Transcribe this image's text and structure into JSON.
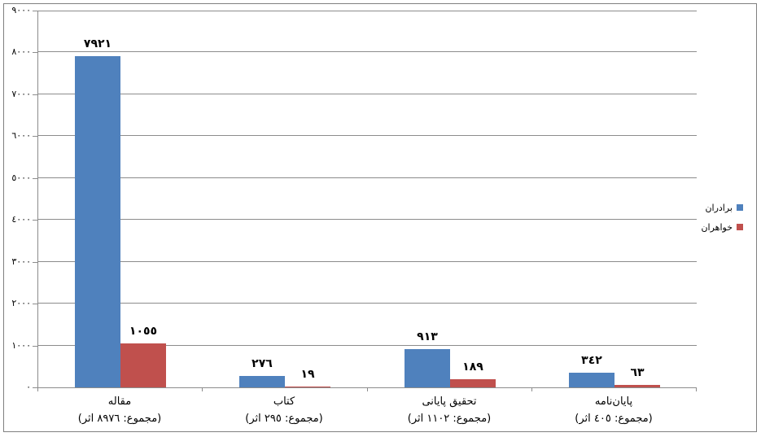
{
  "chart_data": {
    "type": "bar",
    "title": "",
    "xlabel": "",
    "ylabel": "",
    "grid": true,
    "background": "#FFFFFF",
    "colors": {
      "gridline": "#8C8C8C",
      "axis": "#8C8C8C",
      "border": "#808080",
      "label": "#000000",
      "series_blue": "#4F81BD",
      "series_red": "#C0504D"
    },
    "categories": [
      {
        "label": "مقاله",
        "sublabel": "(مجموع:  ٨٩٧٦ اثر)",
        "total": 8976
      },
      {
        "label": "کتاب",
        "sublabel": "(مجموع:  ٢٩٥ اثر)",
        "total": 295
      },
      {
        "label": "تحقیق پایانی",
        "sublabel": "(مجموع:  ١١٠٢ اثر)",
        "total": 1102
      },
      {
        "label": "پایان‌نامه",
        "sublabel": "(مجموع:  ٤٠٥ اثر)",
        "total": 405
      }
    ],
    "series": [
      {
        "name": "برادران",
        "color": "#4F81BD",
        "values": [
          7921,
          276,
          913,
          342
        ],
        "value_labels": [
          "٧٩٢١",
          "٢٧٦",
          "٩١٣",
          "٣٤٢"
        ]
      },
      {
        "name": "خواهران",
        "color": "#C0504D",
        "values": [
          1055,
          19,
          189,
          63
        ],
        "value_labels": [
          "١٠٥٥",
          "١٩",
          "١٨٩",
          "٦٣"
        ]
      }
    ],
    "y_axis": {
      "min": 0,
      "max": 9000,
      "step": 1000,
      "ticks": [
        {
          "value": 0,
          "label": "٠"
        },
        {
          "value": 1000,
          "label": "١٠٠٠"
        },
        {
          "value": 2000,
          "label": "٢٠٠٠"
        },
        {
          "value": 3000,
          "label": "٣٠٠٠"
        },
        {
          "value": 4000,
          "label": "٤٠٠٠"
        },
        {
          "value": 5000,
          "label": "٥٠٠٠"
        },
        {
          "value": 6000,
          "label": "٦٠٠٠"
        },
        {
          "value": 7000,
          "label": "٧٠٠٠"
        },
        {
          "value": 8000,
          "label": "٨٠٠٠"
        },
        {
          "value": 9000,
          "label": "٩٠٠٠"
        }
      ]
    },
    "legend": {
      "position": "right",
      "entries": [
        {
          "label": "برادران",
          "color": "#4F81BD"
        },
        {
          "label": "خواهران",
          "color": "#C0504D"
        }
      ]
    }
  }
}
